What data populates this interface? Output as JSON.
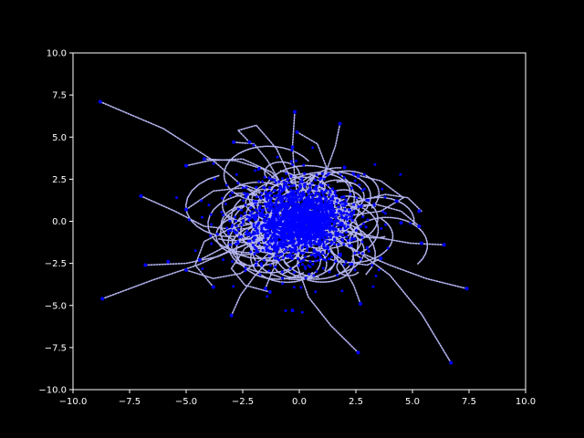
{
  "chart_data": {
    "type": "scatter",
    "title": "",
    "xlabel": "",
    "ylabel": "",
    "xlim": [
      -10,
      10
    ],
    "ylim": [
      -10,
      10
    ],
    "xticks": [
      -10,
      -7.5,
      -5,
      -2.5,
      0,
      2.5,
      5,
      7.5,
      10
    ],
    "yticks": [
      -10,
      -7.5,
      -5,
      -2.5,
      0,
      2.5,
      5,
      7.5,
      10
    ],
    "xtick_labels": [
      "−10.0",
      "−7.5",
      "−5.0",
      "−2.5",
      "0.0",
      "2.5",
      "5.0",
      "7.5",
      "10.0"
    ],
    "ytick_labels": [
      "−10.0",
      "−7.5",
      "−5.0",
      "−2.5",
      "0.0",
      "2.5",
      "5.0",
      "7.5",
      "10.0"
    ],
    "grid": false,
    "legend": "none",
    "colors": {
      "background": "#000000",
      "axes": "#ffffff",
      "trail": "#b4b4f0",
      "points": "#0000ff"
    },
    "series": [
      {
        "role": "trajectory-endpoints",
        "x": [
          -8.8,
          -8.7,
          -7.0,
          -6.8,
          -5.8,
          -5.0,
          -5.0,
          -5.0,
          -4.2,
          -4.4,
          -3.8,
          -3.0,
          -2.9,
          -2.2,
          -1.3,
          -1.5,
          -0.3,
          -0.2,
          -0.1,
          -0.3,
          1.8,
          2.0,
          2.6,
          2.7,
          2.6,
          3.6,
          4.5,
          4.3,
          5.3,
          5.4,
          5.3,
          6.4,
          7.4,
          6.7
        ],
        "y": [
          7.1,
          -4.6,
          1.5,
          -2.6,
          -2.4,
          3.3,
          -2.9,
          0.7,
          3.7,
          -2.3,
          -3.9,
          -5.6,
          4.7,
          4.7,
          -4.2,
          -4.0,
          -5.3,
          6.5,
          5.3,
          4.4,
          5.8,
          3.2,
          2.7,
          -4.9,
          -7.8,
          -2.2,
          -0.1,
          1.2,
          -0.3,
          -1.3,
          0.6,
          -1.4,
          -4.0,
          -8.4
        ]
      },
      {
        "role": "trajectory-trails",
        "paths": [
          [
            [
              -8.8,
              7.1
            ],
            [
              -6.0,
              5.5
            ],
            [
              -3.8,
              3.6
            ],
            [
              -2.6,
              2.2
            ],
            [
              -1.5,
              1.2
            ]
          ],
          [
            [
              -8.7,
              -4.6
            ],
            [
              -6.5,
              -3.5
            ],
            [
              -4.5,
              -2.6
            ],
            [
              -2.8,
              -1.6
            ],
            [
              -1.5,
              -0.9
            ]
          ],
          [
            [
              -7.0,
              1.5
            ],
            [
              -5.5,
              0.6
            ],
            [
              -4.2,
              -0.3
            ],
            [
              -2.8,
              -0.5
            ],
            [
              -1.6,
              -0.3
            ]
          ],
          [
            [
              -6.8,
              -2.6
            ],
            [
              -5.0,
              -2.5
            ],
            [
              -3.6,
              -2.1
            ],
            [
              -2.4,
              -1.4
            ],
            [
              -1.3,
              -0.6
            ]
          ],
          [
            [
              -5.0,
              3.3
            ],
            [
              -4.0,
              3.6
            ],
            [
              -2.5,
              3.7
            ],
            [
              -1.2,
              2.9
            ],
            [
              -0.4,
              1.6
            ]
          ],
          [
            [
              -5.0,
              -2.9
            ],
            [
              -3.8,
              -3.4
            ],
            [
              -2.6,
              -3.1
            ],
            [
              -1.6,
              -2.2
            ],
            [
              -0.7,
              -1.1
            ]
          ],
          [
            [
              -3.0,
              -5.6
            ],
            [
              -2.6,
              -4.4
            ],
            [
              -2.0,
              -3.3
            ],
            [
              -1.2,
              -2.1
            ],
            [
              -0.5,
              -1.0
            ]
          ],
          [
            [
              -2.2,
              4.7
            ],
            [
              -2.7,
              5.4
            ],
            [
              -1.9,
              5.7
            ],
            [
              -1.0,
              4.3
            ],
            [
              -0.3,
              2.3
            ]
          ],
          [
            [
              -1.5,
              -4.0
            ],
            [
              -1.2,
              -3.0
            ],
            [
              -0.8,
              -2.0
            ],
            [
              -0.4,
              -1.0
            ]
          ],
          [
            [
              -0.2,
              6.5
            ],
            [
              -0.3,
              4.5
            ],
            [
              -0.2,
              2.5
            ],
            [
              0.0,
              1.0
            ]
          ],
          [
            [
              1.8,
              5.8
            ],
            [
              1.6,
              4.5
            ],
            [
              1.2,
              3.0
            ],
            [
              0.7,
              1.6
            ],
            [
              0.2,
              0.6
            ]
          ],
          [
            [
              2.6,
              -7.8
            ],
            [
              1.4,
              -6.2
            ],
            [
              0.4,
              -4.5
            ],
            [
              -0.1,
              -2.6
            ],
            [
              0.1,
              -1.0
            ]
          ],
          [
            [
              2.7,
              -4.9
            ],
            [
              2.4,
              -3.8
            ],
            [
              1.9,
              -2.6
            ],
            [
              1.2,
              -1.5
            ],
            [
              0.5,
              -0.6
            ]
          ],
          [
            [
              6.7,
              -8.4
            ],
            [
              5.4,
              -5.5
            ],
            [
              4.0,
              -3.2
            ],
            [
              2.6,
              -1.8
            ],
            [
              1.2,
              -0.7
            ]
          ],
          [
            [
              7.4,
              -4.0
            ],
            [
              5.6,
              -3.4
            ],
            [
              4.0,
              -2.6
            ],
            [
              2.4,
              -1.7
            ],
            [
              1.0,
              -0.7
            ]
          ],
          [
            [
              6.4,
              -1.4
            ],
            [
              4.9,
              -1.3
            ],
            [
              3.6,
              -1.0
            ],
            [
              2.2,
              -0.6
            ],
            [
              0.9,
              -0.2
            ]
          ],
          [
            [
              5.4,
              0.6
            ],
            [
              4.8,
              1.4
            ],
            [
              3.8,
              1.6
            ],
            [
              2.6,
              1.2
            ],
            [
              1.2,
              0.5
            ]
          ],
          [
            [
              5.3,
              -0.3
            ],
            [
              4.5,
              0.6
            ],
            [
              3.4,
              1.0
            ],
            [
              2.0,
              0.7
            ],
            [
              0.8,
              0.3
            ]
          ],
          [
            [
              3.6,
              -2.2
            ],
            [
              3.0,
              -2.6
            ],
            [
              2.0,
              -2.4
            ],
            [
              1.1,
              -1.5
            ],
            [
              0.4,
              -0.6
            ]
          ],
          [
            [
              2.7,
              2.7
            ],
            [
              3.6,
              2.4
            ],
            [
              4.6,
              1.4
            ],
            [
              3.6,
              0.6
            ],
            [
              2.0,
              0.3
            ],
            [
              0.8,
              0.1
            ]
          ],
          [
            [
              -5.0,
              0.7
            ],
            [
              -3.8,
              1.8
            ],
            [
              -2.4,
              2.0
            ],
            [
              -1.2,
              1.4
            ],
            [
              -0.4,
              0.6
            ]
          ],
          [
            [
              -4.4,
              -2.3
            ],
            [
              -3.4,
              -1.6
            ],
            [
              -2.2,
              -0.9
            ],
            [
              -1.0,
              -0.3
            ]
          ],
          [
            [
              -1.3,
              -4.2
            ],
            [
              -2.4,
              -3.8
            ],
            [
              -3.0,
              -2.8
            ],
            [
              -2.4,
              -1.6
            ],
            [
              -1.2,
              -0.7
            ]
          ],
          [
            [
              -3.8,
              -3.9
            ],
            [
              -4.6,
              -2.6
            ],
            [
              -4.2,
              -1.2
            ],
            [
              -3.0,
              -0.4
            ],
            [
              -1.6,
              0.0
            ]
          ],
          [
            [
              -4.2,
              3.7
            ],
            [
              -2.8,
              3.6
            ],
            [
              -1.6,
              3.1
            ],
            [
              -0.6,
              2.0
            ],
            [
              0.0,
              0.8
            ]
          ],
          [
            [
              -2.9,
              4.7
            ],
            [
              -2.0,
              4.6
            ],
            [
              -1.4,
              3.6
            ],
            [
              -0.8,
              2.2
            ],
            [
              -0.2,
              1.0
            ]
          ],
          [
            [
              -0.1,
              5.3
            ],
            [
              0.8,
              4.6
            ],
            [
              1.2,
              3.2
            ],
            [
              0.8,
              1.8
            ],
            [
              0.3,
              0.7
            ]
          ]
        ]
      }
    ]
  }
}
